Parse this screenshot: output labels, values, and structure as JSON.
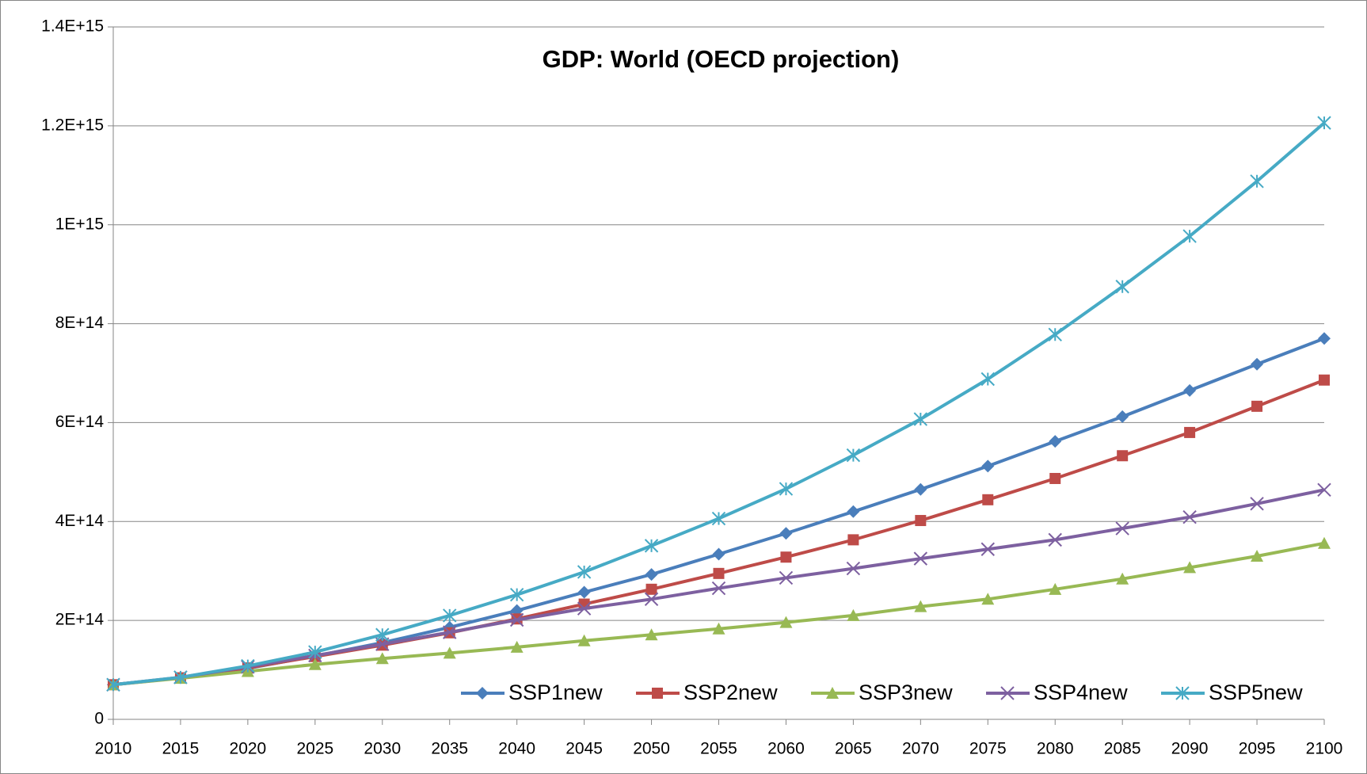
{
  "chart_data": {
    "type": "line",
    "title": "GDP: World (OECD projection)",
    "categories": [
      "2010",
      "2015",
      "2020",
      "2025",
      "2030",
      "2035",
      "2040",
      "2045",
      "2050",
      "2055",
      "2060",
      "2065",
      "2070",
      "2075",
      "2080",
      "2085",
      "2090",
      "2095",
      "2100"
    ],
    "series": [
      {
        "name": "SSP1new",
        "color": "#4a7ebb",
        "marker": "diamond",
        "values": [
          70000000000000.0,
          84000000000000.0,
          103000000000000.0,
          128000000000000.0,
          155000000000000.0,
          186000000000000.0,
          220000000000000.0,
          257000000000000.0,
          293000000000000.0,
          334000000000000.0,
          376000000000000.0,
          420000000000000.0,
          465000000000000.0,
          512000000000000.0,
          562000000000000.0,
          612000000000000.0,
          665000000000000.0,
          718000000000000.0,
          770000000000000.0
        ]
      },
      {
        "name": "SSP2new",
        "color": "#be4b48",
        "marker": "square",
        "values": [
          70000000000000.0,
          84000000000000.0,
          104000000000000.0,
          127000000000000.0,
          150000000000000.0,
          175000000000000.0,
          203000000000000.0,
          233000000000000.0,
          263000000000000.0,
          295000000000000.0,
          328000000000000.0,
          363000000000000.0,
          402000000000000.0,
          444000000000000.0,
          487000000000000.0,
          533000000000000.0,
          580000000000000.0,
          633000000000000.0,
          686000000000000.0
        ]
      },
      {
        "name": "SSP3new",
        "color": "#98b954",
        "marker": "triangle",
        "values": [
          70000000000000.0,
          83000000000000.0,
          97000000000000.0,
          111000000000000.0,
          123000000000000.0,
          134000000000000.0,
          146000000000000.0,
          159000000000000.0,
          171000000000000.0,
          183000000000000.0,
          196000000000000.0,
          210000000000000.0,
          228000000000000.0,
          243000000000000.0,
          263000000000000.0,
          284000000000000.0,
          307000000000000.0,
          330000000000000.0,
          356000000000000.0
        ]
      },
      {
        "name": "SSP4new",
        "color": "#7d60a0",
        "marker": "x",
        "values": [
          70000000000000.0,
          85000000000000.0,
          106000000000000.0,
          129000000000000.0,
          152000000000000.0,
          176000000000000.0,
          201000000000000.0,
          224000000000000.0,
          243000000000000.0,
          265000000000000.0,
          286000000000000.0,
          305000000000000.0,
          325000000000000.0,
          344000000000000.0,
          363000000000000.0,
          386000000000000.0,
          409000000000000.0,
          436000000000000.0,
          464000000000000.0
        ]
      },
      {
        "name": "SSP5new",
        "color": "#46aac5",
        "marker": "asterisk",
        "values": [
          70000000000000.0,
          85000000000000.0,
          108000000000000.0,
          136000000000000.0,
          171000000000000.0,
          210000000000000.0,
          252000000000000.0,
          298000000000000.0,
          351000000000000.0,
          406000000000000.0,
          466000000000000.0,
          534000000000000.0,
          607000000000000.0,
          688000000000000.0,
          778000000000000.0,
          875000000000000.0,
          977000000000000.0,
          1088000000000000.0,
          1206000000000000.0
        ]
      }
    ],
    "ylim": [
      0,
      1400000000000000.0
    ],
    "yticks": [
      0,
      {
        "value": 200000000000000.0,
        "label": "2E+14"
      },
      {
        "value": 400000000000000.0,
        "label": "4E+14"
      },
      {
        "value": 600000000000000.0,
        "label": "6E+14"
      },
      {
        "value": 800000000000000.0,
        "label": "8E+14"
      },
      {
        "value": 1000000000000000.0,
        "label": "1E+15"
      },
      {
        "value": 1200000000000000.0,
        "label": "1.2E+15"
      },
      {
        "value": 1400000000000000.0,
        "label": "1.4E+15"
      }
    ],
    "grid": true,
    "legend": "lower right"
  }
}
